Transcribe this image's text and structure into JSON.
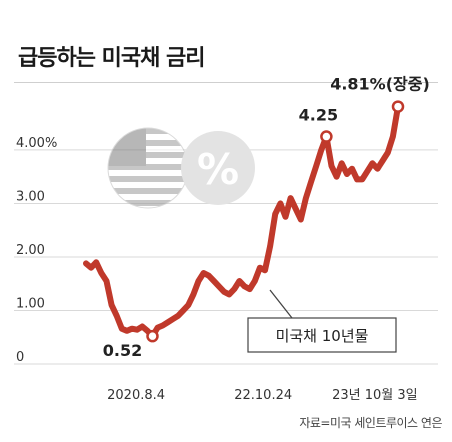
{
  "chart_data": {
    "type": "line",
    "title": "급등하는 미국채 금리",
    "source": "자료=미국 세인트루이스 연은",
    "series_label": "미국채 10년물",
    "line_color": "#c0392b",
    "ylim": [
      0,
      5.4
    ],
    "y_ticks": [
      {
        "value": 0,
        "label": "0"
      },
      {
        "value": 1,
        "label": "1.00"
      },
      {
        "value": 2,
        "label": "2.00"
      },
      {
        "value": 3,
        "label": "3.00"
      },
      {
        "value": 4,
        "label": "4.00%"
      }
    ],
    "x_ticks": [
      {
        "x": 13,
        "label": "2020.8.4"
      },
      {
        "x": 46,
        "label": "22.10.24"
      },
      {
        "x": 75,
        "label": "23년 10월 3일"
      }
    ],
    "xlim": [
      0,
      81
    ],
    "annotations": [
      {
        "x": 13,
        "y": 0.52,
        "label": "0.52"
      },
      {
        "x": 55,
        "y": 4.25,
        "label": "4.25"
      },
      {
        "x": 80,
        "y": 4.81,
        "label": "4.81%(장중)"
      }
    ],
    "icons": [
      "us-flag-icon",
      "percent-icon"
    ],
    "values": [
      [
        0,
        1.88
      ],
      [
        1,
        1.8
      ],
      [
        2,
        1.9
      ],
      [
        3,
        1.7
      ],
      [
        4,
        1.55
      ],
      [
        5,
        1.1
      ],
      [
        6,
        0.9
      ],
      [
        7,
        0.66
      ],
      [
        8,
        0.62
      ],
      [
        9,
        0.66
      ],
      [
        10,
        0.64
      ],
      [
        11,
        0.7
      ],
      [
        12,
        0.62
      ],
      [
        13,
        0.52
      ],
      [
        14,
        0.68
      ],
      [
        15,
        0.72
      ],
      [
        16,
        0.78
      ],
      [
        17,
        0.84
      ],
      [
        18,
        0.9
      ],
      [
        19,
        1.0
      ],
      [
        20,
        1.1
      ],
      [
        21,
        1.3
      ],
      [
        22,
        1.55
      ],
      [
        23,
        1.7
      ],
      [
        24,
        1.65
      ],
      [
        25,
        1.55
      ],
      [
        26,
        1.45
      ],
      [
        27,
        1.35
      ],
      [
        28,
        1.3
      ],
      [
        29,
        1.4
      ],
      [
        30,
        1.55
      ],
      [
        31,
        1.45
      ],
      [
        32,
        1.4
      ],
      [
        33,
        1.55
      ],
      [
        34,
        1.8
      ],
      [
        35,
        1.75
      ],
      [
        36,
        2.2
      ],
      [
        37,
        2.8
      ],
      [
        38,
        3.0
      ],
      [
        39,
        2.75
      ],
      [
        40,
        3.1
      ],
      [
        41,
        2.9
      ],
      [
        42,
        2.7
      ],
      [
        43,
        3.1
      ],
      [
        44,
        3.4
      ],
      [
        45,
        3.7
      ],
      [
        46,
        4.0
      ],
      [
        47,
        4.25
      ],
      [
        48,
        3.7
      ],
      [
        49,
        3.5
      ],
      [
        50,
        3.75
      ],
      [
        51,
        3.55
      ],
      [
        52,
        3.65
      ],
      [
        53,
        3.45
      ],
      [
        54,
        3.45
      ],
      [
        55,
        3.6
      ],
      [
        56,
        3.75
      ],
      [
        57,
        3.65
      ],
      [
        58,
        3.8
      ],
      [
        59,
        3.95
      ],
      [
        60,
        4.25
      ],
      [
        61,
        4.81
      ]
    ]
  }
}
